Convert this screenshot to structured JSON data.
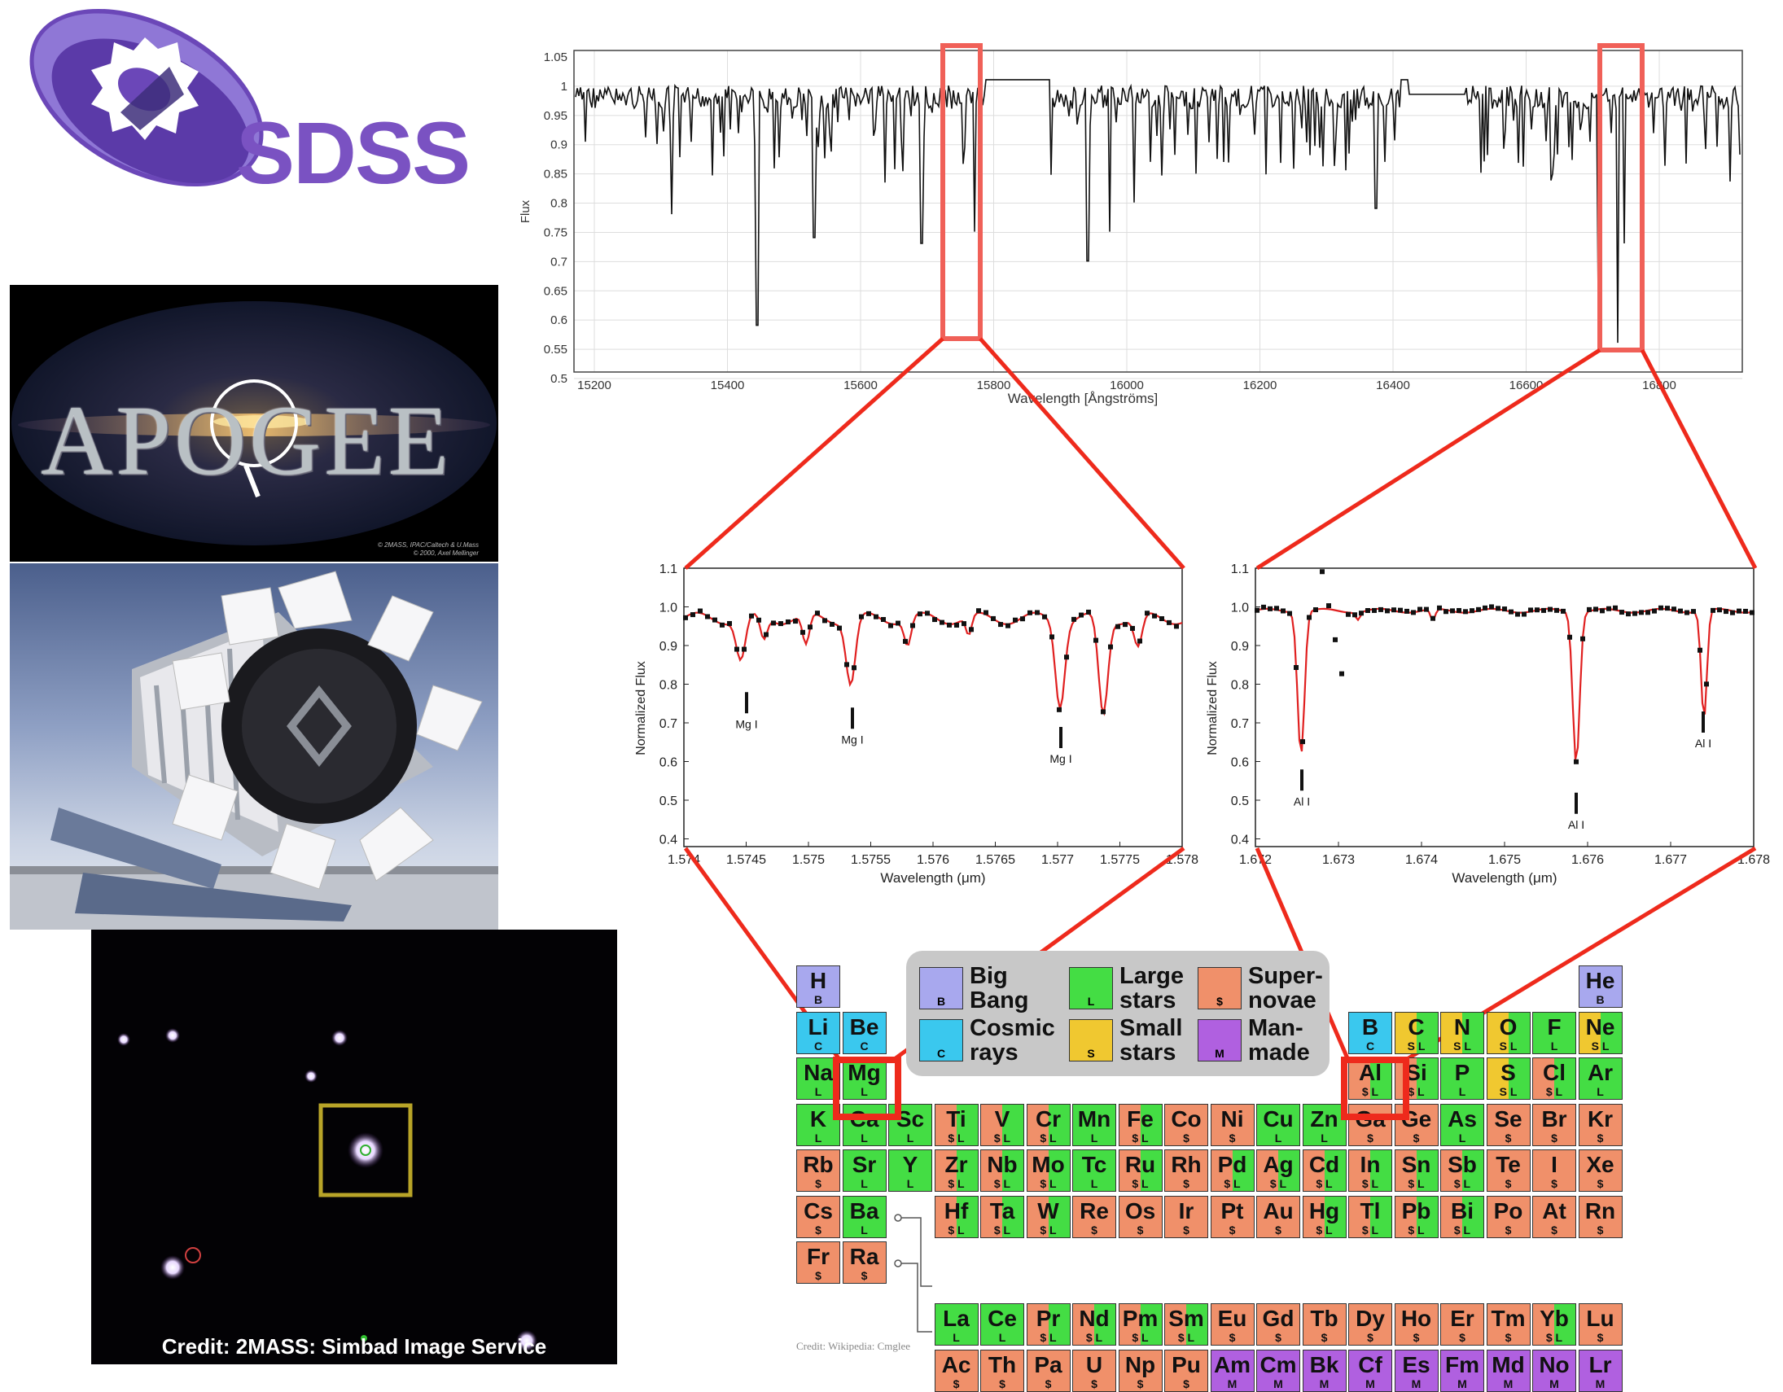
{
  "logo": {
    "text": "SDSS",
    "colors": {
      "purple": "#6b47b8",
      "light_purple": "#8f77d6",
      "dark": "#3d2e7a"
    }
  },
  "apogee": {
    "title": "APOGEE",
    "credit_line1": "© 2MASS, IPAC/Caltech & U.Mass",
    "credit_line2": "© 2000, Axel Mellinger"
  },
  "starfield": {
    "credit": "Credit: 2MASS: Simbad Image Service"
  },
  "spectrum": {
    "ylabel": "Flux",
    "xlabel": "Wavelength [Ångströms]",
    "yticks": [
      "1.05",
      "1",
      "0.95",
      "0.9",
      "0.85",
      "0.8",
      "0.75",
      "0.7",
      "0.65",
      "0.6",
      "0.55",
      "0.5"
    ],
    "xticks": [
      "15200",
      "15400",
      "15600",
      "15800",
      "16000",
      "16200",
      "16400",
      "16600",
      "16800"
    ]
  },
  "mg_panel": {
    "ylabel": "Normalized Flux",
    "xlabel": "Wavelength (μm)",
    "yticks": [
      "1.1",
      "1.0",
      "0.9",
      "0.8",
      "0.7",
      "0.6",
      "0.5",
      "0.4"
    ],
    "xticks": [
      "1.574",
      "1.5745",
      "1.575",
      "1.5755",
      "1.576",
      "1.5765",
      "1.577",
      "1.5775",
      "1.578"
    ],
    "line_labels": [
      "Mg I",
      "Mg I",
      "Mg I"
    ]
  },
  "al_panel": {
    "ylabel": "Normalized Flux",
    "xlabel": "Wavelength (μm)",
    "yticks": [
      "1.1",
      "1.0",
      "0.9",
      "0.8",
      "0.7",
      "0.6",
      "0.5",
      "0.4"
    ],
    "xticks": [
      "1.672",
      "1.673",
      "1.674",
      "1.675",
      "1.676",
      "1.677",
      "1.678"
    ],
    "line_labels": [
      "Al I",
      "Al I",
      "Al I"
    ]
  },
  "ptable": {
    "credit": "Credit: Wikipedia: Cmglee",
    "colors": {
      "B": "#a8a8ee",
      "C": "#3ac8ee",
      "L": "#44dd44",
      "S": "#f0c830",
      "$": "#f0906a",
      "M": "#b060e0"
    },
    "legend": [
      {
        "code": "B",
        "label": "Big Bang"
      },
      {
        "code": "L",
        "label": "Large stars"
      },
      {
        "code": "$",
        "label": "Super-novae"
      },
      {
        "code": "C",
        "label": "Cosmic rays"
      },
      {
        "code": "S",
        "label": "Small stars"
      },
      {
        "code": "M",
        "label": "Man-made"
      }
    ],
    "elements": [
      {
        "sym": "H",
        "src": "B"
      },
      {
        "sym": "He",
        "src": "B"
      },
      {
        "sym": "Li",
        "src": "C"
      },
      {
        "sym": "Be",
        "src": "C"
      },
      {
        "sym": "B",
        "src": "C"
      },
      {
        "sym": "C",
        "src": "S L"
      },
      {
        "sym": "N",
        "src": "S L"
      },
      {
        "sym": "O",
        "src": "S L"
      },
      {
        "sym": "F",
        "src": "L"
      },
      {
        "sym": "Ne",
        "src": "S L"
      },
      {
        "sym": "Na",
        "src": "L"
      },
      {
        "sym": "Mg",
        "src": "L"
      },
      {
        "sym": "Al",
        "src": "$ L"
      },
      {
        "sym": "Si",
        "src": "$ L"
      },
      {
        "sym": "P",
        "src": "L"
      },
      {
        "sym": "S",
        "src": "S L"
      },
      {
        "sym": "Cl",
        "src": "$ L"
      },
      {
        "sym": "Ar",
        "src": "L"
      },
      {
        "sym": "K",
        "src": "L"
      },
      {
        "sym": "Ca",
        "src": "L"
      },
      {
        "sym": "Sc",
        "src": "L"
      },
      {
        "sym": "Ti",
        "src": "$ L"
      },
      {
        "sym": "V",
        "src": "$ L"
      },
      {
        "sym": "Cr",
        "src": "$ L"
      },
      {
        "sym": "Mn",
        "src": "L"
      },
      {
        "sym": "Fe",
        "src": "$ L"
      },
      {
        "sym": "Co",
        "src": "$"
      },
      {
        "sym": "Ni",
        "src": "$"
      },
      {
        "sym": "Cu",
        "src": "L"
      },
      {
        "sym": "Zn",
        "src": "L"
      },
      {
        "sym": "Ga",
        "src": "$"
      },
      {
        "sym": "Ge",
        "src": "$"
      },
      {
        "sym": "As",
        "src": "L"
      },
      {
        "sym": "Se",
        "src": "$"
      },
      {
        "sym": "Br",
        "src": "$"
      },
      {
        "sym": "Kr",
        "src": "$"
      },
      {
        "sym": "Rb",
        "src": "$"
      },
      {
        "sym": "Sr",
        "src": "L"
      },
      {
        "sym": "Y",
        "src": "L"
      },
      {
        "sym": "Zr",
        "src": "$ L"
      },
      {
        "sym": "Nb",
        "src": "$ L"
      },
      {
        "sym": "Mo",
        "src": "$ L"
      },
      {
        "sym": "Tc",
        "src": "L"
      },
      {
        "sym": "Ru",
        "src": "$ L"
      },
      {
        "sym": "Rh",
        "src": "$"
      },
      {
        "sym": "Pd",
        "src": "$ L"
      },
      {
        "sym": "Ag",
        "src": "$ L"
      },
      {
        "sym": "Cd",
        "src": "$ L"
      },
      {
        "sym": "In",
        "src": "$ L"
      },
      {
        "sym": "Sn",
        "src": "$ L"
      },
      {
        "sym": "Sb",
        "src": "$ L"
      },
      {
        "sym": "Te",
        "src": "$"
      },
      {
        "sym": "I",
        "src": "$"
      },
      {
        "sym": "Xe",
        "src": "$"
      },
      {
        "sym": "Cs",
        "src": "$"
      },
      {
        "sym": "Ba",
        "src": "L"
      },
      {
        "sym": "Hf",
        "src": "$ L"
      },
      {
        "sym": "Ta",
        "src": "$ L"
      },
      {
        "sym": "W",
        "src": "$ L"
      },
      {
        "sym": "Re",
        "src": "$"
      },
      {
        "sym": "Os",
        "src": "$"
      },
      {
        "sym": "Ir",
        "src": "$"
      },
      {
        "sym": "Pt",
        "src": "$"
      },
      {
        "sym": "Au",
        "src": "$"
      },
      {
        "sym": "Hg",
        "src": "$ L"
      },
      {
        "sym": "Tl",
        "src": "$ L"
      },
      {
        "sym": "Pb",
        "src": "$ L"
      },
      {
        "sym": "Bi",
        "src": "$ L"
      },
      {
        "sym": "Po",
        "src": "$"
      },
      {
        "sym": "At",
        "src": "$"
      },
      {
        "sym": "Rn",
        "src": "$"
      },
      {
        "sym": "Fr",
        "src": "$"
      },
      {
        "sym": "Ra",
        "src": "$"
      },
      {
        "sym": "La",
        "src": "L"
      },
      {
        "sym": "Ce",
        "src": "L"
      },
      {
        "sym": "Pr",
        "src": "$ L"
      },
      {
        "sym": "Nd",
        "src": "$ L"
      },
      {
        "sym": "Pm",
        "src": "$ L"
      },
      {
        "sym": "Sm",
        "src": "$ L"
      },
      {
        "sym": "Eu",
        "src": "$"
      },
      {
        "sym": "Gd",
        "src": "$"
      },
      {
        "sym": "Tb",
        "src": "$"
      },
      {
        "sym": "Dy",
        "src": "$"
      },
      {
        "sym": "Ho",
        "src": "$"
      },
      {
        "sym": "Er",
        "src": "$"
      },
      {
        "sym": "Tm",
        "src": "$"
      },
      {
        "sym": "Yb",
        "src": "$ L"
      },
      {
        "sym": "Lu",
        "src": "$"
      },
      {
        "sym": "Ac",
        "src": "$"
      },
      {
        "sym": "Th",
        "src": "$"
      },
      {
        "sym": "Pa",
        "src": "$"
      },
      {
        "sym": "U",
        "src": "$"
      },
      {
        "sym": "Np",
        "src": "$"
      },
      {
        "sym": "Pu",
        "src": "$"
      },
      {
        "sym": "Am",
        "src": "M"
      },
      {
        "sym": "Cm",
        "src": "M"
      },
      {
        "sym": "Bk",
        "src": "M"
      },
      {
        "sym": "Cf",
        "src": "M"
      },
      {
        "sym": "Es",
        "src": "M"
      },
      {
        "sym": "Fm",
        "src": "M"
      },
      {
        "sym": "Md",
        "src": "M"
      },
      {
        "sym": "No",
        "src": "M"
      },
      {
        "sym": "Lr",
        "src": "M"
      }
    ]
  }
}
